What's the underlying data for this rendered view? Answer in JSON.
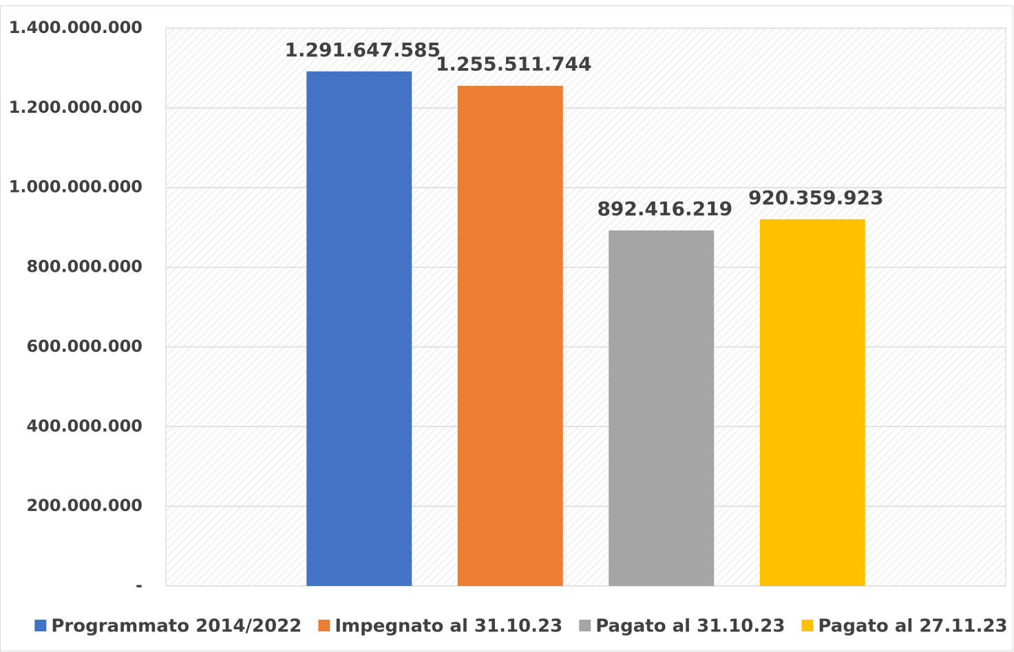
{
  "chart_data": {
    "type": "bar",
    "series": [
      {
        "name": "Programmato 2014/2022",
        "color": "#4472c4",
        "values": [
          1291647585
        ],
        "value_labels": [
          "1.291.647.585"
        ]
      },
      {
        "name": "Impegnato al 31.10.23",
        "color": "#ed7d31",
        "values": [
          1255511744
        ],
        "value_labels": [
          "1.255.511.744"
        ]
      },
      {
        "name": "Pagato al 31.10.23",
        "color": "#a5a5a5",
        "values": [
          892416219
        ],
        "value_labels": [
          "892.416.219"
        ]
      },
      {
        "name": "Pagato al 27.11.23",
        "color": "#ffc000",
        "values": [
          920359923
        ],
        "value_labels": [
          "920.359.923"
        ]
      }
    ],
    "ylim": [
      0,
      1400000000
    ],
    "yticks": [
      {
        "value": 0,
        "label": "-"
      },
      {
        "value": 200000000,
        "label": "200.000.000"
      },
      {
        "value": 400000000,
        "label": "400.000.000"
      },
      {
        "value": 600000000,
        "label": "600.000.000"
      },
      {
        "value": 800000000,
        "label": "800.000.000"
      },
      {
        "value": 1000000000,
        "label": "1.000.000.000"
      },
      {
        "value": 1200000000,
        "label": "1.200.000.000"
      },
      {
        "value": 1400000000,
        "label": "1.400.000.000"
      }
    ],
    "grid": true,
    "legend": "bottom"
  }
}
